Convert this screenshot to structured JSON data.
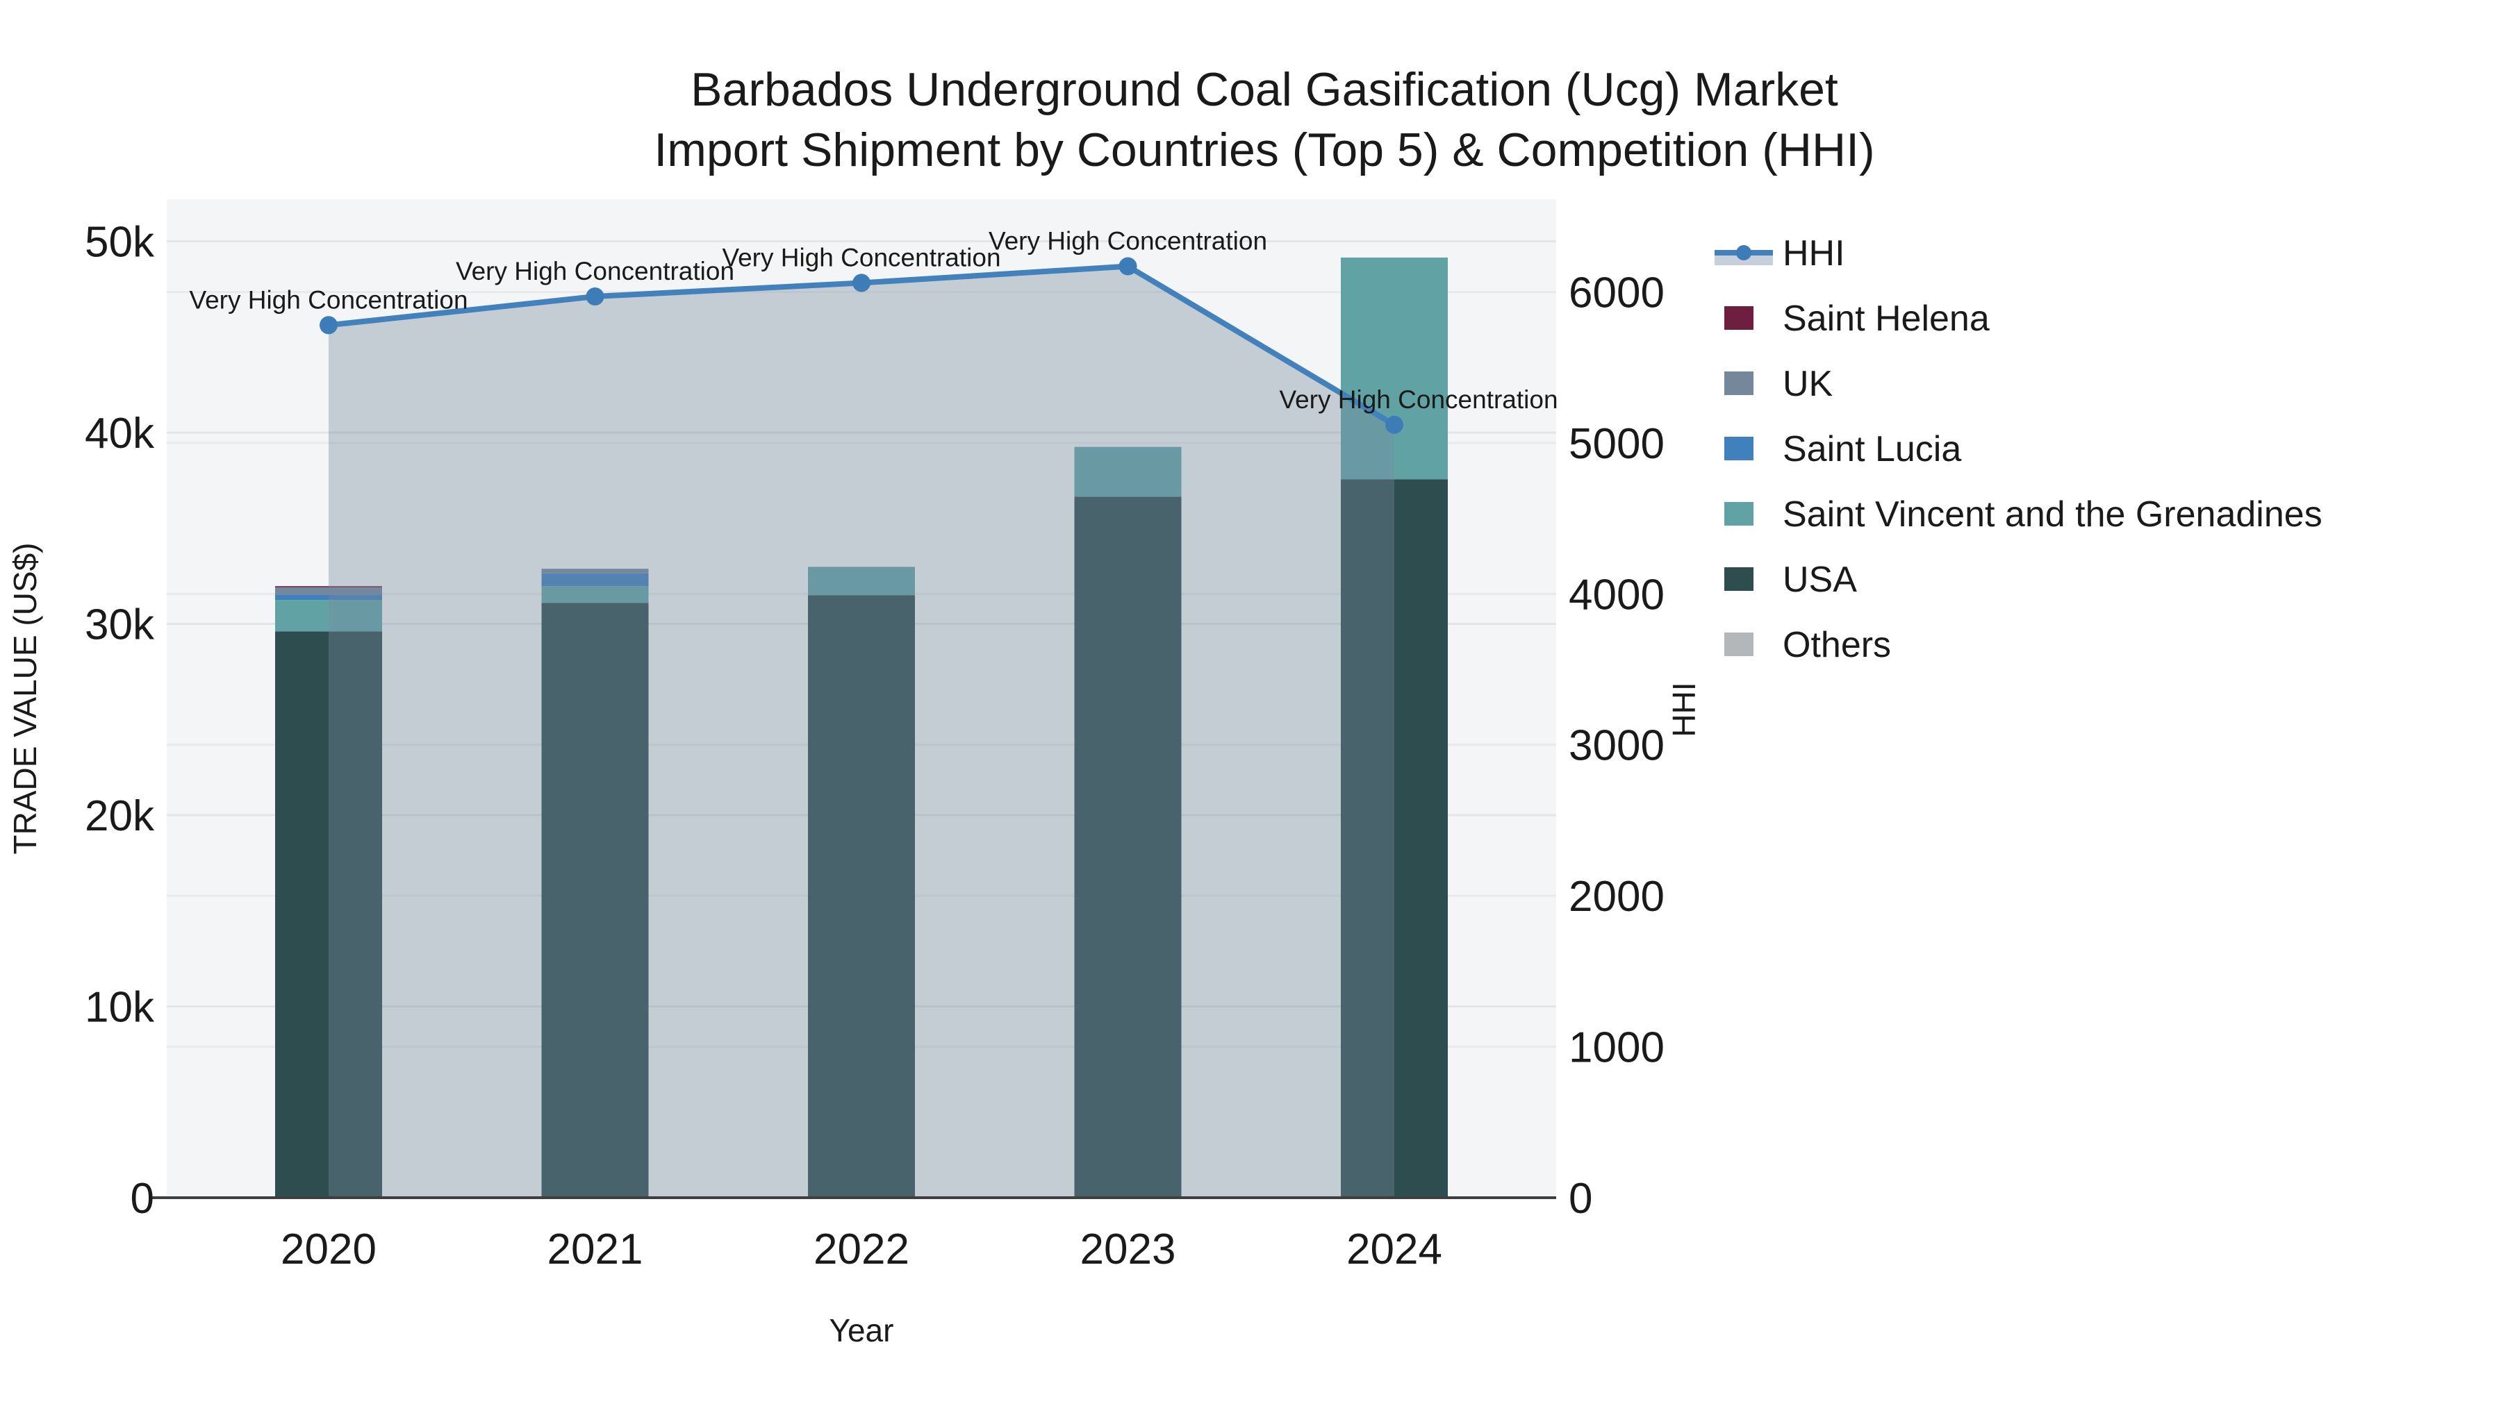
{
  "title": {
    "line1": "Barbados Underground Coal Gasification (Ucg) Market",
    "line2": "Import Shipment by Countries (Top 5) & Competition (HHI)"
  },
  "axes": {
    "x": {
      "label": "Year",
      "tick_labels": [
        "2020",
        "2021",
        "2022",
        "2023",
        "2024"
      ]
    },
    "y_left": {
      "label": "TRADE VALUE (US$)",
      "tick_labels": [
        "0",
        "10k",
        "20k",
        "30k",
        "40k",
        "50k"
      ],
      "min": 0,
      "max": 50000
    },
    "y_right": {
      "label": "HHI",
      "tick_labels": [
        "0",
        "1000",
        "2000",
        "3000",
        "4000",
        "5000",
        "6000"
      ],
      "min": 0,
      "max": 6000
    }
  },
  "legend": {
    "items": [
      {
        "label": "HHI",
        "type": "line",
        "color": "#4381bc",
        "fill": "#c7cfda"
      },
      {
        "label": "Saint Helena",
        "type": "box",
        "color": "#6e1e3f"
      },
      {
        "label": "UK",
        "type": "box",
        "color": "#75879b"
      },
      {
        "label": "Saint Lucia",
        "type": "box",
        "color": "#4080bd"
      },
      {
        "label": "Saint Vincent and the Grenadines",
        "type": "box",
        "color": "#61a3a5"
      },
      {
        "label": "USA",
        "type": "box",
        "color": "#2e4d4e"
      },
      {
        "label": "Others",
        "type": "box",
        "color": "#b4b7ba"
      }
    ]
  },
  "chart_data": [
    {
      "type": "bar",
      "stacked": true,
      "categories": [
        "2020",
        "2021",
        "2022",
        "2023",
        "2024"
      ],
      "xlabel": "Year",
      "ylabel": "TRADE VALUE (US$)",
      "ylim": [
        0,
        52000
      ],
      "stack_order_bottom_up": [
        "Others",
        "USA",
        "Saint Vincent and the Grenadines",
        "Saint Lucia",
        "UK",
        "Saint Helena"
      ],
      "series": [
        {
          "name": "Saint Helena",
          "color": "#6e1e3f",
          "values": [
            60,
            0,
            0,
            0,
            0
          ]
        },
        {
          "name": "UK",
          "color": "#75879b",
          "values": [
            380,
            240,
            0,
            0,
            0
          ]
        },
        {
          "name": "Saint Lucia",
          "color": "#4080bd",
          "values": [
            280,
            670,
            0,
            0,
            0
          ]
        },
        {
          "name": "Saint Vincent and the Grenadines",
          "color": "#61a3a5",
          "values": [
            1650,
            870,
            1480,
            2600,
            11600
          ]
        },
        {
          "name": "USA",
          "color": "#2e4d4e",
          "values": [
            29600,
            31100,
            31500,
            36650,
            37550
          ]
        },
        {
          "name": "Others",
          "color": "#b4b7ba",
          "values": [
            0,
            0,
            0,
            0,
            0
          ]
        }
      ],
      "totals": [
        31970,
        32880,
        32980,
        39250,
        49150
      ]
    },
    {
      "type": "line",
      "name": "HHI",
      "axis": "right",
      "ylabel": "HHI",
      "ylim": [
        0,
        6300
      ],
      "x": [
        "2020",
        "2021",
        "2022",
        "2023",
        "2024"
      ],
      "values": [
        5780,
        5970,
        6060,
        6170,
        5120
      ],
      "area_fill": true,
      "line_color": "#4381bc",
      "area_color": "rgba(119,136,157,0.38)",
      "annotations": [
        "Very High Concentration",
        "Very High Concentration",
        "Very High Concentration",
        "Very High Concentration",
        "Very High Concentration"
      ]
    }
  ]
}
